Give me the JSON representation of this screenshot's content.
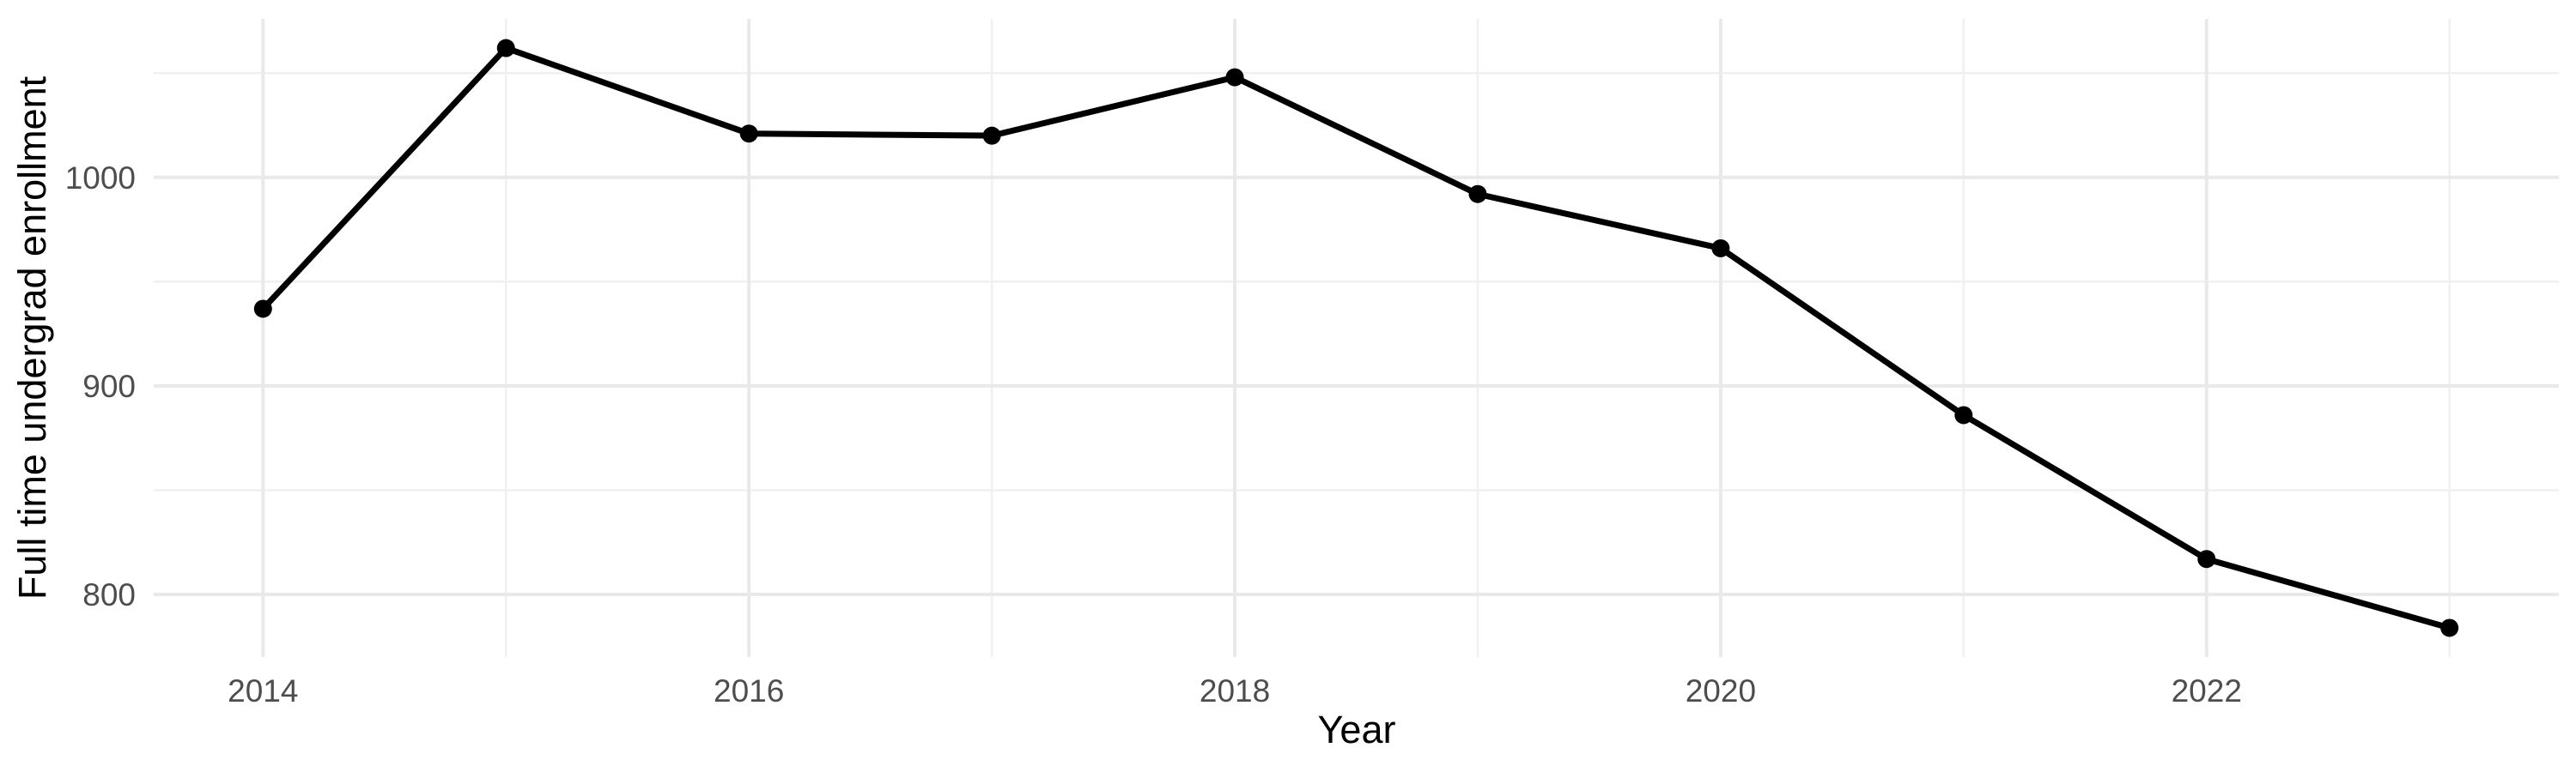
{
  "chart_data": {
    "type": "line",
    "title": "",
    "xlabel": "Year",
    "ylabel": "Full time undergrad enrollment",
    "x": [
      2014,
      2015,
      2016,
      2017,
      2018,
      2019,
      2020,
      2021,
      2022,
      2023
    ],
    "y": [
      937,
      1062,
      1021,
      1020,
      1048,
      992,
      966,
      886,
      817,
      784
    ],
    "xlim": [
      2013.55,
      2023.45
    ],
    "ylim": [
      770,
      1076
    ],
    "x_major_ticks": [
      2014,
      2016,
      2018,
      2020,
      2022
    ],
    "x_minor_gridlines": [
      2015,
      2017,
      2019,
      2021,
      2023
    ],
    "y_major_ticks": [
      800,
      900,
      1000
    ],
    "y_minor_gridlines": [
      850,
      950,
      1050
    ],
    "grid": "major+minor",
    "legend": "none",
    "style": {
      "line_color": "#000000",
      "point_color": "#000000",
      "major_grid_color": "#e9e9e9",
      "minor_grid_color": "#f0f0f0",
      "tick_label_color": "#4d4d4d",
      "axis_title_color": "#000000",
      "background": "#ffffff"
    }
  }
}
